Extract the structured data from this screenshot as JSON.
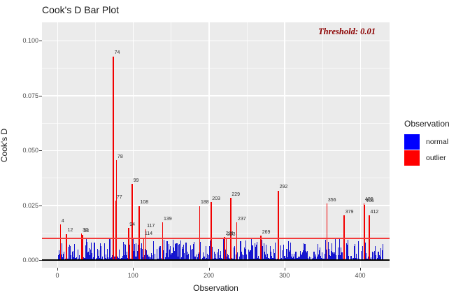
{
  "title": "Cook's D Bar Plot",
  "axes": {
    "x_title": "Observation",
    "y_title": "Cook's D",
    "x_ticks": [
      0,
      100,
      200,
      300,
      400
    ],
    "y_ticks": [
      {
        "value": 0.0,
        "label": "0.000"
      },
      {
        "value": 0.025,
        "label": "0.025"
      },
      {
        "value": 0.05,
        "label": "0.050"
      },
      {
        "value": 0.075,
        "label": "0.075"
      },
      {
        "value": 0.1,
        "label": "0.100"
      }
    ]
  },
  "legend": {
    "title": "Observation",
    "items": [
      {
        "label": "normal",
        "color": "#0000FF"
      },
      {
        "label": "outlier",
        "color": "#FF0000"
      }
    ]
  },
  "annotation": {
    "threshold_label": "Threshold: 0.01",
    "threshold_value": 0.01,
    "text_color": "#8B0000"
  },
  "colors": {
    "panel_bg": "#EBEBEB",
    "grid": "#FFFFFF",
    "normal_bar": "#1515CF",
    "outlier_bar": "#F20000",
    "threshold_line": "#F23B3B",
    "zero_line": "#000000",
    "axis_text": "#4D4D4D",
    "title_text": "#1A1A1A"
  },
  "chart_data": {
    "type": "bar",
    "title": "Cook's D Bar Plot",
    "xlabel": "Observation",
    "ylabel": "Cook's D",
    "xlim": [
      -20,
      438
    ],
    "ylim": [
      -0.0035,
      0.1082
    ],
    "x_ticks": [
      0,
      100,
      200,
      300,
      400
    ],
    "y_ticks": [
      0.0,
      0.025,
      0.05,
      0.075,
      0.1
    ],
    "grid": true,
    "legend_position": "right",
    "threshold": 0.01,
    "outliers": [
      {
        "obs": 4,
        "value": 0.0161
      },
      {
        "obs": 12,
        "value": 0.0119
      },
      {
        "obs": 32,
        "value": 0.012
      },
      {
        "obs": 33,
        "value": 0.0116
      },
      {
        "obs": 74,
        "value": 0.0927
      },
      {
        "obs": 77,
        "value": 0.027
      },
      {
        "obs": 78,
        "value": 0.0455
      },
      {
        "obs": 94,
        "value": 0.0146
      },
      {
        "obs": 99,
        "value": 0.0347
      },
      {
        "obs": 108,
        "value": 0.0246
      },
      {
        "obs": 114,
        "value": 0.0103
      },
      {
        "obs": 117,
        "value": 0.0139
      },
      {
        "obs": 139,
        "value": 0.0171
      },
      {
        "obs": 188,
        "value": 0.0246
      },
      {
        "obs": 203,
        "value": 0.0263
      },
      {
        "obs": 221,
        "value": 0.0104
      },
      {
        "obs": 223,
        "value": 0.0101
      },
      {
        "obs": 229,
        "value": 0.0283
      },
      {
        "obs": 237,
        "value": 0.0171
      },
      {
        "obs": 269,
        "value": 0.0111
      },
      {
        "obs": 292,
        "value": 0.0316
      },
      {
        "obs": 356,
        "value": 0.0257
      },
      {
        "obs": 379,
        "value": 0.0203
      },
      {
        "obs": 405,
        "value": 0.0259
      },
      {
        "obs": 406,
        "value": 0.0252
      },
      {
        "obs": 412,
        "value": 0.0203
      }
    ],
    "normal_bars": {
      "count_range": [
        1,
        430
      ],
      "height_min": 0.0002,
      "height_max": 0.0095,
      "seed": 42,
      "note": "dense unlabeled blue spikes below the 0.01 threshold; individual values not readable from plot"
    }
  }
}
